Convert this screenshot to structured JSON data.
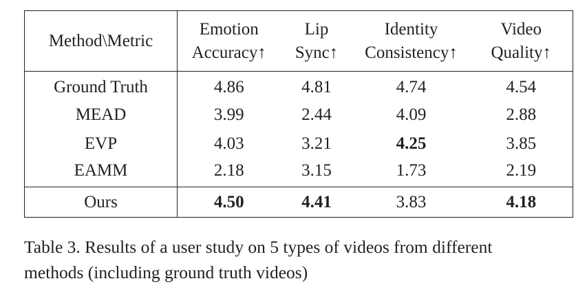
{
  "table": {
    "headers": {
      "method": "Method\\Metric",
      "metrics": [
        {
          "line1": "Emotion",
          "line2": "Accuracy↑"
        },
        {
          "line1": "Lip",
          "line2": "Sync↑"
        },
        {
          "line1": "Identity",
          "line2": "Consistency↑"
        },
        {
          "line1": "Video",
          "line2": "Quality↑"
        }
      ]
    },
    "rows": [
      {
        "method": "Ground Truth",
        "values": [
          "4.86",
          "4.81",
          "4.74",
          "4.54"
        ],
        "bold": [
          false,
          false,
          false,
          false
        ]
      },
      {
        "method": "MEAD",
        "values": [
          "3.99",
          "2.44",
          "4.09",
          "2.88"
        ],
        "bold": [
          false,
          false,
          false,
          false
        ]
      },
      {
        "method": "EVP",
        "values": [
          "4.03",
          "3.21",
          "4.25",
          "3.85"
        ],
        "bold": [
          false,
          false,
          true,
          false
        ]
      },
      {
        "method": "EAMM",
        "values": [
          "2.18",
          "3.15",
          "1.73",
          "2.19"
        ],
        "bold": [
          false,
          false,
          false,
          false
        ]
      },
      {
        "method": "Ours",
        "values": [
          "4.50",
          "4.41",
          "3.83",
          "4.18"
        ],
        "bold": [
          true,
          true,
          false,
          true
        ]
      }
    ]
  },
  "caption": {
    "line1": "Table 3. Results of a user study on 5 types of videos from different",
    "line2": "methods (including ground truth videos)"
  }
}
